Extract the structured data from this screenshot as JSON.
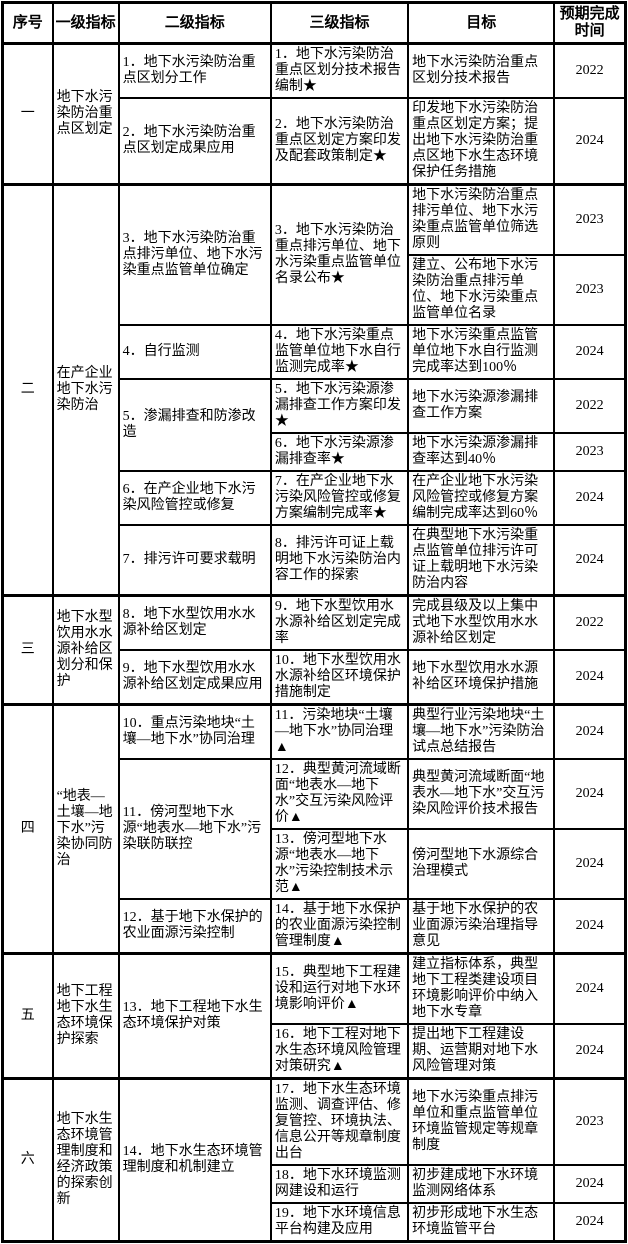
{
  "headers": [
    "序号",
    "一级指标",
    "二级指标",
    "三级指标",
    "目标",
    "预期完成时间"
  ],
  "s": [
    {
      "idx": "一",
      "l1": "地下水污染防治重点区划定",
      "rows": [
        {
          "l2": "1．地下水污染防治重点区划分工作",
          "l3": "1．地下水污染防治重点区划分技术报告编制★",
          "tg": "地下水污染防治重点区划分技术报告",
          "yr": "2022"
        },
        {
          "l2": "2．地下水污染防治重点区划定成果应用",
          "l3": "2．地下水污染防治重点区划定方案印发及配套政策制定★",
          "tg": "印发地下水污染防治重点区划定方案；提出地下水污染防治重点区地下水生态环境保护任务措施",
          "yr": "2024"
        }
      ]
    },
    {
      "idx": "二",
      "l1": "在产企业地下水污染防治",
      "rows": [
        {
          "l2": "3．地下水污染防治重点排污单位、地下水污染重点监管单位确定",
          "l3": "3．地下水污染防治重点排污单位、地下水污染重点监管单位名录公布★",
          "tg": "地下水污染防治重点排污单位、地下水污染重点监管单位筛选原则",
          "yr": "2023"
        },
        {
          "tg": "建立、公布地下水污染防治重点排污单位、地下水污染重点监管单位名录",
          "yr": "2023"
        },
        {
          "l2": "4．自行监测",
          "l3": "4．地下水污染重点监管单位地下水自行监测完成率★",
          "tg": "地下水污染重点监管单位地下水自行监测完成率达到100％",
          "yr": "2024"
        },
        {
          "l2": "5．渗漏排查和防渗改造",
          "l3": "5．地下水污染源渗漏排查工作方案印发★",
          "tg": "地下水污染源渗漏排查工作方案",
          "yr": "2022"
        },
        {
          "l3": "6．地下水污染源渗漏排查率★",
          "tg": "地下水污染源渗漏排查率达到40％",
          "yr": "2023"
        },
        {
          "l2": "6．在产企业地下水污染风险管控或修复",
          "l3": "7．在产企业地下水污染风险管控或修复方案编制完成率★",
          "tg": "在产企业地下水污染风险管控或修复方案编制完成率达到60％",
          "yr": "2024"
        },
        {
          "l2": "7．排污许可要求载明",
          "l3": "8．排污许可证上载明地下水污染防治内容工作的探索",
          "tg": "在典型地下水污染重点监管单位排污许可证上载明地下水污染防治内容",
          "yr": "2024"
        }
      ]
    },
    {
      "idx": "三",
      "l1": "地下水型饮用水水源补给区划分和保护",
      "rows": [
        {
          "l2": "8．地下水型饮用水水源补给区划定",
          "l3": "9．地下水型饮用水水源补给区划定完成率",
          "tg": "完成县级及以上集中式地下水型饮用水水源补给区划定",
          "yr": "2022"
        },
        {
          "l2": "9．地下水型饮用水水源补给区划定成果应用",
          "l3": "10．地下水型饮用水水源补给区环境保护措施制定",
          "tg": "地下水型饮用水水源补给区环境保护措施",
          "yr": "2024"
        }
      ]
    },
    {
      "idx": "四",
      "l1": "“地表—土壤—地下水”污染协同防治",
      "rows": [
        {
          "l2": "10．重点污染地块“土壤—地下水”协同治理",
          "l3": "11．污染地块“土壤—地下水”协同治理▲",
          "tg": "典型行业污染地块“土壤—地下水”污染防治试点总结报告",
          "yr": "2024"
        },
        {
          "l2": "11．傍河型地下水源“地表水—地下水”污染联防联控",
          "l3": "12．典型黄河流域断面“地表水—地下水”交互污染风险评价▲",
          "tg": "典型黄河流域断面“地表水—地下水”交互污染风险评价技术报告",
          "yr": "2024"
        },
        {
          "l3": "13．傍河型地下水源“地表水—地下水”污染控制技术示范▲",
          "tg": "傍河型地下水源综合治理模式",
          "yr": "2024"
        },
        {
          "l2": "12．基于地下水保护的农业面源污染控制",
          "l3": "14．基于地下水保护的农业面源污染控制管理制度▲",
          "tg": "基于地下水保护的农业面源污染治理指导意见",
          "yr": "2024"
        }
      ]
    },
    {
      "idx": "五",
      "l1": "地下工程地下水生态环境保护探索",
      "rows": [
        {
          "l2": "13．地下工程地下水生态环境保护对策",
          "l3": "15．典型地下工程建设和运行对地下水环境影响评价▲",
          "tg": "建立指标体系，典型地下工程类建设项目环境影响评价中纳入地下水专章",
          "yr": "2024"
        },
        {
          "l3": "16．地下工程对地下水生态环境风险管理对策研究▲",
          "tg": "提出地下工程建设期、运营期对地下水风险管理对策",
          "yr": "2024"
        }
      ]
    },
    {
      "idx": "六",
      "l1": "地下水生态环境管理制度和经济政策的探索创新",
      "rows": [
        {
          "l2": "14．地下水生态环境管理制度和机制建立",
          "l3": "17．地下水生态环境监测、调查评估、修复管控、环境执法、信息公开等规章制度出台",
          "tg": "地下水污染重点排污单位和重点监管单位环境监管规定等规章制度",
          "yr": "2023"
        },
        {
          "l3": "18．地下水环境监测网建设和运行",
          "tg": "初步建成地下水环境监测网络体系",
          "yr": "2024"
        },
        {
          "l3": "19．地下水环境信息平台构建及应用",
          "tg": "初步形成地下水生态环境监管平台",
          "yr": "2024"
        }
      ]
    }
  ]
}
